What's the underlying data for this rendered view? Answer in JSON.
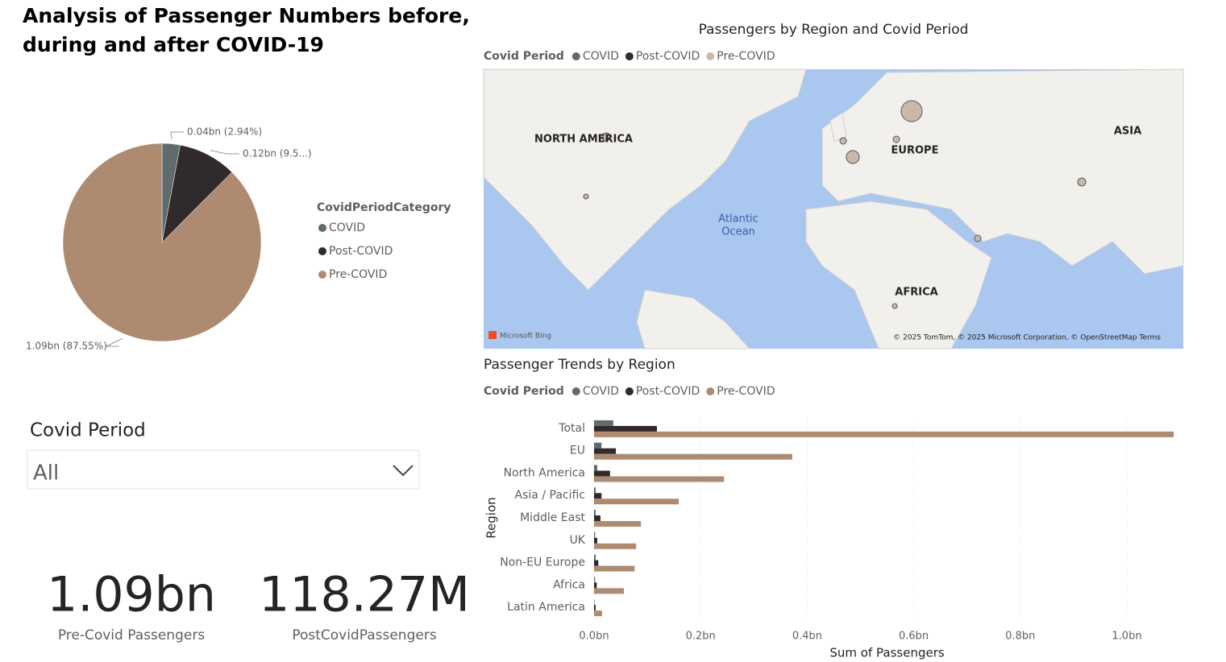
{
  "title": "Analysis of Passenger Numbers before, during and after COVID-19",
  "chart_data": [
    {
      "type": "pie",
      "legend_title": "CovidPeriodCategory",
      "categories": [
        "COVID",
        "Post-COVID",
        "Pre-COVID"
      ],
      "values": [
        2.94,
        9.51,
        87.55
      ],
      "value_labels": [
        "0.04bn (2.94%)",
        "0.12bn (9.5...)",
        "1.09bn (87.55%)"
      ],
      "colors": [
        "#5f6b6d",
        "#312a2a",
        "#ae8b70"
      ]
    },
    {
      "type": "map",
      "title": "Passengers by Region and Covid Period",
      "legend_title": "Covid Period",
      "series": [
        {
          "name": "COVID",
          "color": "#5f6b6d"
        },
        {
          "name": "Post-COVID",
          "color": "#312a2a"
        },
        {
          "name": "Pre-COVID",
          "color": "#cbb9a8"
        }
      ],
      "labels": [
        "NORTH AMERICA",
        "EUROPE",
        "ASIA",
        "AFRICA",
        "Atlantic",
        "Ocean"
      ],
      "attribution": "Microsoft Bing",
      "copyright": "© 2025 TomTom, © 2025 Microsoft Corporation, © OpenStreetMap  Terms"
    },
    {
      "type": "hbar",
      "title": "Passenger Trends by Region",
      "legend_title": "Covid Period",
      "categories": [
        "Total",
        "EU",
        "North America",
        "Asia / Pacific",
        "Middle East",
        "UK",
        "Non-EU Europe",
        "Africa",
        "Latin America"
      ],
      "series": [
        {
          "name": "COVID",
          "color": "#5f6b6d",
          "values": [
            0.036,
            0.014,
            0.006,
            0.003,
            0.003,
            0.002,
            0.003,
            0.002,
            0.001
          ]
        },
        {
          "name": "Post-COVID",
          "color": "#312a2a",
          "values": [
            0.118,
            0.041,
            0.03,
            0.014,
            0.012,
            0.006,
            0.008,
            0.005,
            0.003
          ]
        },
        {
          "name": "Pre-COVID",
          "color": "#ae8b70",
          "values": [
            1.088,
            0.372,
            0.244,
            0.159,
            0.088,
            0.079,
            0.076,
            0.056,
            0.015
          ]
        }
      ],
      "xlim": [
        0,
        1.1
      ],
      "xticks": [
        {
          "value": 0,
          "label": "0.0bn"
        },
        {
          "value": 0.2,
          "label": "0.2bn"
        },
        {
          "value": 0.4,
          "label": "0.4bn"
        },
        {
          "value": 0.6,
          "label": "0.6bn"
        },
        {
          "value": 0.8,
          "label": "0.8bn"
        },
        {
          "value": 1.0,
          "label": "1.0bn"
        }
      ],
      "grid": true,
      "xlabel": "Sum of Passengers",
      "ylabel": "Region"
    }
  ],
  "slicer": {
    "label": "Covid Period",
    "value": "All"
  },
  "cards": [
    {
      "value": "1.09bn",
      "label": "Pre-Covid Passengers"
    },
    {
      "value": "118.27M",
      "label": "PostCovidPassengers"
    }
  ]
}
